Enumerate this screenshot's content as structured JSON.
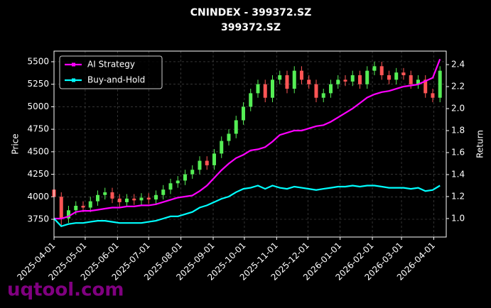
{
  "chart_data": {
    "type": "candlestick",
    "title": "CNINDEX - 399372.SZ",
    "subtitle": "399372.SZ",
    "y_label": "Price",
    "y2_label": "Return",
    "watermark": "uqtool.com",
    "x": [
      "2025-04-01",
      "2025-04-08",
      "2025-04-15",
      "2025-04-22",
      "2025-04-29",
      "2025-05-06",
      "2025-05-13",
      "2025-05-20",
      "2025-05-27",
      "2025-06-03",
      "2025-06-10",
      "2025-06-17",
      "2025-06-24",
      "2025-07-01",
      "2025-07-08",
      "2025-07-15",
      "2025-07-22",
      "2025-07-29",
      "2025-08-05",
      "2025-08-12",
      "2025-08-19",
      "2025-08-26",
      "2025-09-02",
      "2025-09-09",
      "2025-09-16",
      "2025-09-23",
      "2025-09-30",
      "2025-10-07",
      "2025-10-14",
      "2025-10-21",
      "2025-10-28",
      "2025-11-04",
      "2025-11-11",
      "2025-11-18",
      "2025-11-25",
      "2025-12-02",
      "2025-12-09",
      "2025-12-16",
      "2025-12-23",
      "2025-12-30",
      "2026-01-06",
      "2026-01-13",
      "2026-01-20",
      "2026-01-27",
      "2026-02-03",
      "2026-02-10",
      "2026-02-17",
      "2026-02-24",
      "2026-03-03",
      "2026-03-10",
      "2026-03-17",
      "2026-03-24",
      "2026-03-31",
      "2026-04-07"
    ],
    "open": [
      4080,
      4000,
      3760,
      3850,
      3900,
      3880,
      3950,
      4020,
      4050,
      3980,
      3940,
      3980,
      3960,
      3990,
      3970,
      4020,
      4080,
      4150,
      4180,
      4250,
      4300,
      4400,
      4350,
      4480,
      4620,
      4700,
      4850,
      5000,
      5150,
      5250,
      5100,
      5300,
      5350,
      5200,
      5400,
      5300,
      5250,
      5100,
      5150,
      5250,
      5300,
      5280,
      5350,
      5250,
      5400,
      5450,
      5350,
      5300,
      5380,
      5350,
      5250,
      5300,
      5150,
      5100
    ],
    "high": [
      4130,
      4050,
      3900,
      3950,
      3950,
      4000,
      4070,
      4100,
      4100,
      4030,
      4030,
      4030,
      4040,
      4040,
      4070,
      4130,
      4200,
      4230,
      4300,
      4350,
      4450,
      4450,
      4530,
      4670,
      4750,
      4900,
      5050,
      5200,
      5300,
      5300,
      5350,
      5400,
      5400,
      5450,
      5450,
      5350,
      5300,
      5200,
      5300,
      5350,
      5350,
      5400,
      5400,
      5450,
      5500,
      5500,
      5400,
      5430,
      5430,
      5400,
      5350,
      5350,
      5200,
      5450
    ],
    "low": [
      3950,
      3680,
      3710,
      3800,
      3830,
      3830,
      3900,
      3970,
      3930,
      3890,
      3890,
      3910,
      3910,
      3920,
      3920,
      3970,
      4030,
      4100,
      4130,
      4200,
      4250,
      4300,
      4300,
      4430,
      4570,
      4650,
      4800,
      4950,
      5100,
      5050,
      5050,
      5250,
      5150,
      5150,
      5250,
      5200,
      5050,
      5050,
      5100,
      5200,
      5230,
      5230,
      5200,
      5200,
      5350,
      5300,
      5250,
      5250,
      5300,
      5200,
      5200,
      5100,
      5050,
      5050
    ],
    "close": [
      4000,
      3760,
      3850,
      3900,
      3880,
      3950,
      4020,
      4050,
      3980,
      3940,
      3980,
      3960,
      3990,
      3970,
      4020,
      4080,
      4150,
      4180,
      4250,
      4300,
      4400,
      4350,
      4480,
      4620,
      4700,
      4850,
      5000,
      5150,
      5250,
      5100,
      5300,
      5350,
      5200,
      5400,
      5300,
      5250,
      5100,
      5150,
      5250,
      5300,
      5280,
      5350,
      5250,
      5400,
      5450,
      5350,
      5300,
      5380,
      5350,
      5250,
      5300,
      5150,
      5100,
      5400
    ],
    "up_color": "#55ee55",
    "down_color": "#ff5555",
    "series": [
      {
        "name": "AI Strategy",
        "color": "#ff00ff",
        "axis": "y2",
        "values": [
          1.0,
          1.0,
          1.02,
          1.06,
          1.07,
          1.07,
          1.08,
          1.09,
          1.1,
          1.1,
          1.11,
          1.11,
          1.12,
          1.12,
          1.13,
          1.15,
          1.17,
          1.19,
          1.2,
          1.21,
          1.25,
          1.3,
          1.37,
          1.44,
          1.5,
          1.55,
          1.58,
          1.62,
          1.63,
          1.65,
          1.7,
          1.76,
          1.78,
          1.8,
          1.8,
          1.82,
          1.84,
          1.85,
          1.88,
          1.92,
          1.96,
          2.0,
          2.05,
          2.1,
          2.13,
          2.15,
          2.16,
          2.18,
          2.2,
          2.21,
          2.22,
          2.25,
          2.28,
          2.45
        ]
      },
      {
        "name": "Buy-and-Hold",
        "color": "#00ffff",
        "axis": "y2",
        "values": [
          1.0,
          0.93,
          0.95,
          0.96,
          0.96,
          0.97,
          0.98,
          0.98,
          0.97,
          0.96,
          0.96,
          0.96,
          0.96,
          0.97,
          0.98,
          1.0,
          1.02,
          1.02,
          1.04,
          1.06,
          1.1,
          1.12,
          1.15,
          1.18,
          1.2,
          1.24,
          1.27,
          1.28,
          1.3,
          1.27,
          1.3,
          1.28,
          1.27,
          1.29,
          1.28,
          1.27,
          1.26,
          1.27,
          1.28,
          1.29,
          1.29,
          1.3,
          1.29,
          1.3,
          1.3,
          1.29,
          1.28,
          1.28,
          1.28,
          1.27,
          1.28,
          1.25,
          1.26,
          1.3
        ]
      }
    ],
    "xlim": [
      "2025-04-01",
      "2026-04-13"
    ],
    "xticks": [
      "2025-04-01",
      "2025-05-01",
      "2025-06-01",
      "2025-07-01",
      "2025-08-01",
      "2025-09-01",
      "2025-10-01",
      "2025-11-01",
      "2025-12-01",
      "2026-01-01",
      "2026-02-01",
      "2026-03-01",
      "2026-04-01"
    ],
    "ylim": [
      3553,
      5618
    ],
    "yticks": [
      3750,
      4000,
      4250,
      4500,
      4750,
      5000,
      5250,
      5500
    ],
    "y2lim": [
      0.832,
      2.523
    ],
    "y2ticks": [
      {
        "value": 1,
        "label": "1.0"
      },
      1.2,
      1.4,
      1.6,
      1.8,
      {
        "value": 2,
        "label": "2.0"
      },
      2.2,
      2.4
    ],
    "grid": true,
    "legend": "upper left"
  }
}
